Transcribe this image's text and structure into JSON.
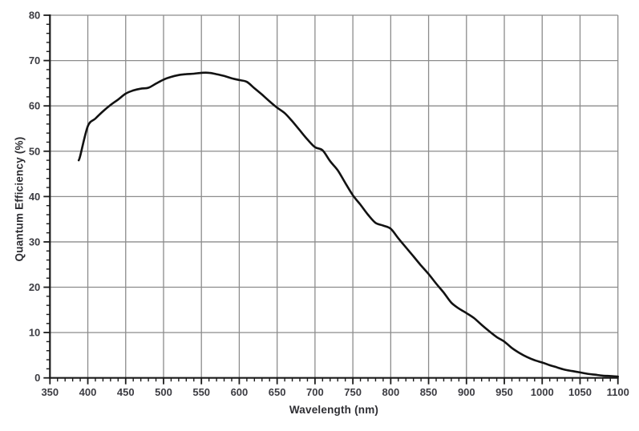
{
  "page": {
    "background_color": "#ffffff"
  },
  "chart_data": {
    "type": "line",
    "title": "",
    "xlabel": "Wavelength (nm)",
    "ylabel": "Quantum Efficiency (%)",
    "xlim": [
      350,
      1100
    ],
    "ylim": [
      0,
      80
    ],
    "x_major_ticks": [
      350,
      400,
      450,
      500,
      550,
      600,
      650,
      700,
      750,
      800,
      850,
      900,
      950,
      1000,
      1050,
      1100
    ],
    "x_minor_step": 10,
    "y_major_ticks": [
      0,
      10,
      20,
      30,
      40,
      50,
      60,
      70,
      80
    ],
    "y_minor_step": 2,
    "grid": true,
    "legend": "none",
    "colors": {
      "grid": "#8c8c8c",
      "axis": "#1b1b1b",
      "tick": "#1b1b1b",
      "tick_label": "#3c3c42",
      "curve": "#121212"
    },
    "series": [
      {
        "name": "quantum-efficiency-curve",
        "x": [
          388,
          390,
          400,
          410,
          420,
          430,
          440,
          450,
          460,
          470,
          480,
          490,
          500,
          510,
          520,
          530,
          540,
          550,
          560,
          570,
          580,
          590,
          600,
          610,
          620,
          630,
          640,
          650,
          660,
          670,
          680,
          690,
          700,
          710,
          720,
          730,
          740,
          750,
          760,
          770,
          780,
          790,
          800,
          810,
          820,
          830,
          840,
          850,
          860,
          870,
          880,
          890,
          900,
          910,
          920,
          930,
          940,
          950,
          960,
          970,
          980,
          990,
          1000,
          1010,
          1020,
          1030,
          1040,
          1050,
          1060,
          1070,
          1080,
          1090,
          1100
        ],
        "y": [
          48.0,
          49.0,
          55.5,
          57.2,
          58.8,
          60.2,
          61.4,
          62.7,
          63.4,
          63.8,
          64.0,
          64.9,
          65.8,
          66.4,
          66.8,
          67.0,
          67.1,
          67.3,
          67.3,
          67.0,
          66.6,
          66.1,
          65.7,
          65.3,
          63.9,
          62.5,
          61.0,
          59.6,
          58.4,
          56.6,
          54.6,
          52.6,
          50.9,
          50.2,
          47.8,
          45.8,
          43.0,
          40.3,
          38.2,
          36.0,
          34.2,
          33.6,
          32.9,
          30.8,
          28.8,
          26.8,
          24.8,
          22.9,
          20.8,
          18.8,
          16.6,
          15.3,
          14.3,
          13.2,
          11.7,
          10.3,
          9.0,
          8.0,
          6.6,
          5.5,
          4.6,
          3.9,
          3.4,
          2.8,
          2.3,
          1.8,
          1.5,
          1.2,
          0.9,
          0.7,
          0.5,
          0.4,
          0.3
        ]
      }
    ],
    "peak": {
      "wavelength_nm": 550,
      "qe_percent": 67.3
    }
  }
}
